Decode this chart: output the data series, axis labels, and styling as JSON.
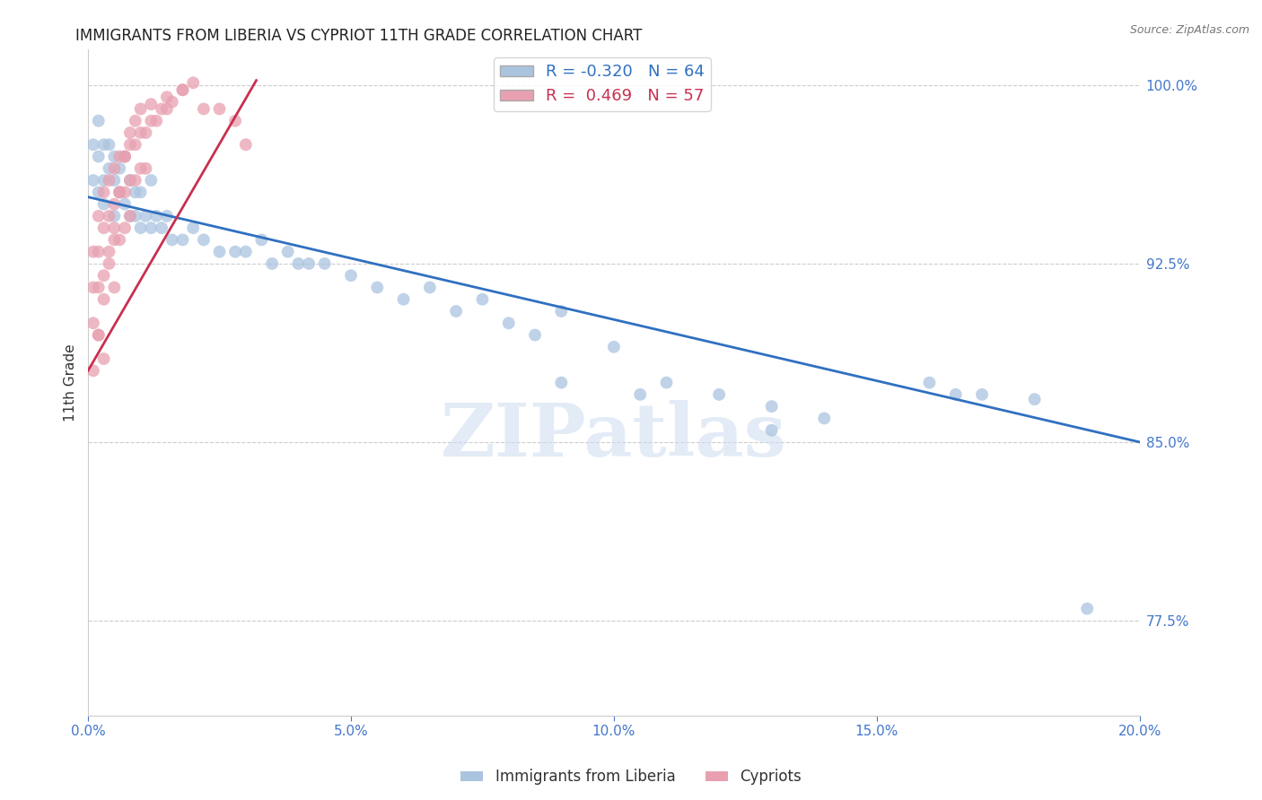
{
  "title": "IMMIGRANTS FROM LIBERIA VS CYPRIOT 11TH GRADE CORRELATION CHART",
  "source_text": "Source: ZipAtlas.com",
  "ylabel": "11th Grade",
  "watermark": "ZIPatlas",
  "xlim": [
    0.0,
    0.2
  ],
  "ylim": [
    0.735,
    1.015
  ],
  "xtick_labels": [
    "0.0%",
    "",
    "",
    "",
    "",
    "5.0%",
    "",
    "",
    "",
    "",
    "10.0%",
    "",
    "",
    "",
    "",
    "15.0%",
    "",
    "",
    "",
    "",
    "20.0%"
  ],
  "xtick_vals": [
    0.0,
    0.01,
    0.02,
    0.03,
    0.04,
    0.05,
    0.06,
    0.07,
    0.08,
    0.09,
    0.1,
    0.11,
    0.12,
    0.13,
    0.14,
    0.15,
    0.16,
    0.17,
    0.18,
    0.19,
    0.2
  ],
  "ytick_labels": [
    "77.5%",
    "85.0%",
    "92.5%",
    "100.0%"
  ],
  "ytick_vals": [
    0.775,
    0.85,
    0.925,
    1.0
  ],
  "blue_R": -0.32,
  "blue_N": 64,
  "pink_R": 0.469,
  "pink_N": 57,
  "blue_label": "Immigrants from Liberia",
  "pink_label": "Cypriots",
  "blue_color": "#aac4e0",
  "pink_color": "#e8a0b0",
  "blue_line_color": "#3070c0",
  "pink_line_color": "#c83050",
  "background_color": "#ffffff",
  "grid_color": "#cccccc",
  "blue_line_x0": 0.0,
  "blue_line_y0": 0.953,
  "blue_line_x1": 0.2,
  "blue_line_y1": 0.85,
  "pink_line_x0": 0.0,
  "pink_line_y0": 0.88,
  "pink_line_x1": 0.032,
  "pink_line_y1": 1.002,
  "blue_scatter_x": [
    0.001,
    0.001,
    0.002,
    0.002,
    0.002,
    0.003,
    0.003,
    0.003,
    0.004,
    0.004,
    0.005,
    0.005,
    0.005,
    0.006,
    0.006,
    0.007,
    0.007,
    0.008,
    0.008,
    0.009,
    0.009,
    0.01,
    0.01,
    0.011,
    0.012,
    0.012,
    0.013,
    0.014,
    0.015,
    0.016,
    0.018,
    0.02,
    0.022,
    0.025,
    0.028,
    0.03,
    0.033,
    0.035,
    0.038,
    0.04,
    0.042,
    0.045,
    0.05,
    0.055,
    0.06,
    0.065,
    0.07,
    0.075,
    0.08,
    0.085,
    0.09,
    0.1,
    0.11,
    0.12,
    0.13,
    0.14,
    0.16,
    0.165,
    0.17,
    0.18,
    0.19,
    0.09,
    0.105,
    0.13
  ],
  "blue_scatter_y": [
    0.975,
    0.96,
    0.985,
    0.97,
    0.955,
    0.975,
    0.96,
    0.95,
    0.975,
    0.965,
    0.97,
    0.96,
    0.945,
    0.965,
    0.955,
    0.97,
    0.95,
    0.96,
    0.945,
    0.955,
    0.945,
    0.955,
    0.94,
    0.945,
    0.96,
    0.94,
    0.945,
    0.94,
    0.945,
    0.935,
    0.935,
    0.94,
    0.935,
    0.93,
    0.93,
    0.93,
    0.935,
    0.925,
    0.93,
    0.925,
    0.925,
    0.925,
    0.92,
    0.915,
    0.91,
    0.915,
    0.905,
    0.91,
    0.9,
    0.895,
    0.905,
    0.89,
    0.875,
    0.87,
    0.865,
    0.86,
    0.875,
    0.87,
    0.87,
    0.868,
    0.78,
    0.875,
    0.87,
    0.855
  ],
  "pink_scatter_x": [
    0.001,
    0.001,
    0.001,
    0.002,
    0.002,
    0.002,
    0.002,
    0.003,
    0.003,
    0.003,
    0.003,
    0.004,
    0.004,
    0.004,
    0.005,
    0.005,
    0.005,
    0.005,
    0.006,
    0.006,
    0.006,
    0.007,
    0.007,
    0.007,
    0.008,
    0.008,
    0.008,
    0.009,
    0.009,
    0.01,
    0.01,
    0.011,
    0.011,
    0.012,
    0.013,
    0.014,
    0.015,
    0.016,
    0.018,
    0.02,
    0.022,
    0.025,
    0.028,
    0.03,
    0.001,
    0.002,
    0.003,
    0.004,
    0.005,
    0.006,
    0.007,
    0.008,
    0.009,
    0.01,
    0.012,
    0.015,
    0.018
  ],
  "pink_scatter_y": [
    0.93,
    0.915,
    0.9,
    0.945,
    0.93,
    0.915,
    0.895,
    0.955,
    0.94,
    0.92,
    0.885,
    0.96,
    0.945,
    0.93,
    0.965,
    0.95,
    0.935,
    0.915,
    0.97,
    0.955,
    0.935,
    0.97,
    0.955,
    0.94,
    0.975,
    0.96,
    0.945,
    0.975,
    0.96,
    0.98,
    0.965,
    0.98,
    0.965,
    0.985,
    0.985,
    0.99,
    0.99,
    0.993,
    0.998,
    1.001,
    0.99,
    0.99,
    0.985,
    0.975,
    0.88,
    0.895,
    0.91,
    0.925,
    0.94,
    0.955,
    0.97,
    0.98,
    0.985,
    0.99,
    0.992,
    0.995,
    0.998
  ]
}
